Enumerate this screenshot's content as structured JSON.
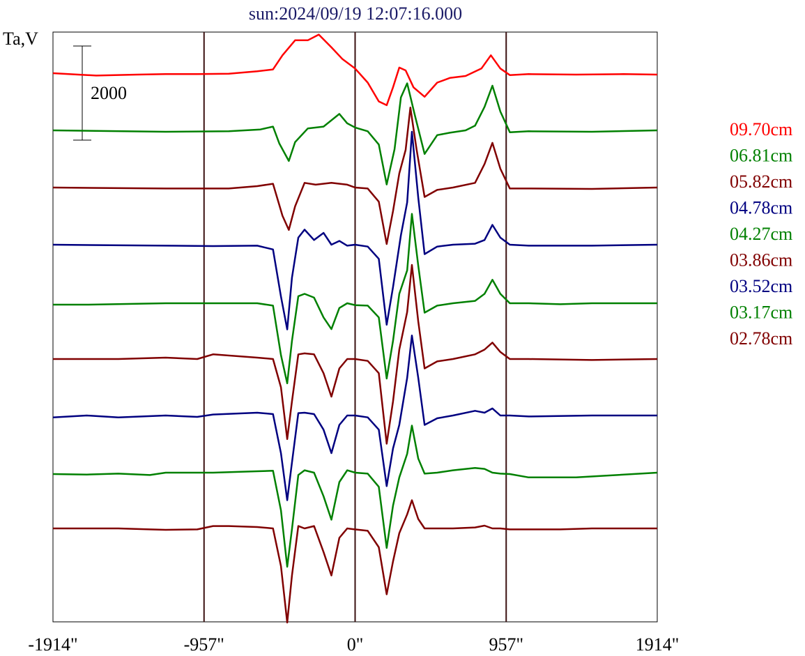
{
  "chart_data": {
    "type": "line",
    "title": "sun:2024/09/19 12:07:16.000",
    "ylabel": "Ta,V",
    "scale_bar_label": "2000",
    "x_ticks": [
      "-1914\"",
      "-957\"",
      "0\"",
      "957\"",
      "1914\""
    ],
    "x_tick_values": [
      -1914,
      -957,
      0,
      957,
      1914
    ],
    "vertical_marker_lines": [
      -957,
      0,
      957
    ],
    "xlim": [
      -1914,
      1914
    ],
    "grid": false,
    "legend_position": "right",
    "stacked_offsets": true,
    "series": [
      {
        "name": "09.70cm",
        "color": "#ff0000",
        "x": [
          -1914,
          -1640,
          -1380,
          -1200,
          -1000,
          -800,
          -620,
          -520,
          -460,
          -380,
          -300,
          -230,
          -150,
          -80,
          0,
          80,
          150,
          200,
          240,
          280,
          320,
          370,
          440,
          520,
          600,
          700,
          800,
          860,
          920,
          980,
          1100,
          1400,
          1700,
          1914
        ],
        "y": [
          0,
          -50,
          -30,
          -20,
          -20,
          -10,
          40,
          80,
          380,
          700,
          700,
          820,
          550,
          300,
          100,
          -200,
          -600,
          -680,
          -300,
          120,
          60,
          -300,
          -500,
          -200,
          -100,
          -60,
          100,
          380,
          100,
          -40,
          -20,
          -30,
          -20,
          -30
        ]
      },
      {
        "name": "06.81cm",
        "color": "#008000",
        "x": [
          -1914,
          -1200,
          -800,
          -600,
          -520,
          -480,
          -420,
          -380,
          -300,
          -200,
          -100,
          -50,
          0,
          80,
          150,
          200,
          250,
          290,
          330,
          380,
          440,
          520,
          600,
          700,
          760,
          820,
          870,
          920,
          980,
          1100,
          1500,
          1914
        ],
        "y": [
          0,
          -30,
          -20,
          20,
          80,
          -280,
          -650,
          -250,
          40,
          80,
          350,
          150,
          60,
          -20,
          -300,
          -1150,
          -400,
          700,
          1000,
          300,
          -500,
          -100,
          -50,
          0,
          100,
          500,
          950,
          400,
          -40,
          -20,
          -30,
          0
        ]
      },
      {
        "name": "05.82cm",
        "color": "#800000",
        "x": [
          -1914,
          -1200,
          -800,
          -620,
          -520,
          -460,
          -420,
          -380,
          -320,
          -250,
          -150,
          -50,
          0,
          80,
          150,
          200,
          240,
          280,
          320,
          350,
          390,
          440,
          520,
          620,
          760,
          820,
          870,
          920,
          980,
          1100,
          1500,
          1914
        ],
        "y": [
          0,
          -20,
          -20,
          30,
          80,
          -600,
          -900,
          -400,
          100,
          60,
          100,
          60,
          0,
          -20,
          -300,
          -1200,
          -500,
          300,
          800,
          1700,
          800,
          -200,
          -50,
          0,
          100,
          500,
          950,
          400,
          -20,
          -20,
          -30,
          0
        ]
      },
      {
        "name": "04.78cm",
        "color": "#000080",
        "x": [
          -1914,
          -1200,
          -900,
          -620,
          -520,
          -470,
          -430,
          -400,
          -360,
          -320,
          -260,
          -200,
          -150,
          -100,
          -50,
          0,
          80,
          150,
          200,
          240,
          290,
          330,
          360,
          400,
          440,
          520,
          620,
          760,
          820,
          870,
          920,
          980,
          1100,
          1500,
          1914
        ],
        "y": [
          0,
          -20,
          -30,
          -20,
          -100,
          -1100,
          -1800,
          -700,
          150,
          320,
          100,
          250,
          0,
          80,
          -20,
          0,
          -40,
          -300,
          -1700,
          -900,
          200,
          900,
          2400,
          1000,
          -200,
          -40,
          0,
          20,
          100,
          420,
          150,
          0,
          -20,
          -20,
          0
        ]
      },
      {
        "name": "04.27cm",
        "color": "#008000",
        "x": [
          -1914,
          -1700,
          -1200,
          -900,
          -620,
          -520,
          -470,
          -430,
          -400,
          -360,
          -320,
          -260,
          -200,
          -150,
          -100,
          -50,
          0,
          80,
          150,
          200,
          240,
          280,
          330,
          360,
          400,
          440,
          520,
          620,
          760,
          820,
          870,
          920,
          980,
          1100,
          1300,
          1500,
          1914
        ],
        "y": [
          -30,
          -30,
          0,
          0,
          0,
          -50,
          -1100,
          -1700,
          -800,
          150,
          200,
          120,
          -300,
          -550,
          -100,
          0,
          -40,
          -50,
          -300,
          -1600,
          -800,
          200,
          700,
          1900,
          800,
          -200,
          -50,
          0,
          50,
          200,
          500,
          200,
          0,
          0,
          -20,
          0,
          0
        ]
      },
      {
        "name": "03.86cm",
        "color": "#800000",
        "x": [
          -1914,
          -1500,
          -1200,
          -1000,
          -900,
          -620,
          -520,
          -470,
          -430,
          -400,
          -360,
          -320,
          -260,
          -200,
          -150,
          -100,
          -50,
          0,
          80,
          150,
          200,
          240,
          280,
          330,
          360,
          400,
          440,
          520,
          620,
          760,
          820,
          870,
          920,
          980,
          1100,
          1500,
          1914
        ],
        "y": [
          0,
          0,
          30,
          0,
          100,
          30,
          0,
          -600,
          -1700,
          -900,
          100,
          120,
          100,
          -300,
          -800,
          -200,
          0,
          0,
          -40,
          -300,
          -1800,
          -900,
          200,
          1000,
          2000,
          800,
          -200,
          -50,
          0,
          100,
          200,
          350,
          150,
          0,
          0,
          -20,
          0
        ]
      },
      {
        "name": "03.52cm",
        "color": "#000080",
        "x": [
          -1914,
          -1700,
          -1500,
          -1200,
          -1000,
          -900,
          -620,
          -520,
          -470,
          -430,
          -400,
          -360,
          -320,
          -260,
          -200,
          -150,
          -100,
          -50,
          0,
          80,
          150,
          200,
          240,
          280,
          330,
          360,
          400,
          440,
          520,
          620,
          760,
          820,
          870,
          920,
          980,
          1100,
          1500,
          1914
        ],
        "y": [
          -40,
          0,
          -40,
          0,
          -30,
          20,
          60,
          30,
          -800,
          -1800,
          -1000,
          50,
          60,
          30,
          -300,
          -800,
          -200,
          0,
          0,
          -40,
          -300,
          -1500,
          -700,
          -200,
          800,
          1700,
          800,
          -200,
          -60,
          0,
          100,
          60,
          150,
          0,
          0,
          -20,
          0,
          0
        ]
      },
      {
        "name": "03.17cm",
        "color": "#008000",
        "x": [
          -1914,
          -1700,
          -1500,
          -1300,
          -1200,
          -900,
          -620,
          -520,
          -470,
          -430,
          -400,
          -360,
          -320,
          -260,
          -200,
          -150,
          -100,
          -50,
          0,
          80,
          150,
          200,
          240,
          280,
          330,
          360,
          400,
          440,
          520,
          620,
          760,
          820,
          870,
          920,
          980,
          1100,
          1400,
          1914
        ],
        "y": [
          -30,
          -40,
          -20,
          -50,
          0,
          0,
          30,
          40,
          -800,
          -2000,
          -1200,
          -50,
          50,
          0,
          -500,
          -1000,
          -200,
          50,
          0,
          -20,
          -300,
          -1600,
          -700,
          -100,
          400,
          1000,
          300,
          -20,
          0,
          50,
          100,
          80,
          0,
          -20,
          -30,
          -100,
          -100,
          0
        ]
      },
      {
        "name": "02.78cm",
        "color": "#800000",
        "x": [
          -1914,
          -1500,
          -1300,
          -1200,
          -1000,
          -900,
          -800,
          -620,
          -520,
          -470,
          -430,
          -400,
          -360,
          -320,
          -260,
          -200,
          -150,
          -100,
          -50,
          0,
          80,
          150,
          200,
          240,
          280,
          330,
          360,
          400,
          440,
          520,
          620,
          760,
          820,
          870,
          920,
          980,
          1100,
          1300,
          1500,
          1914
        ],
        "y": [
          0,
          0,
          -20,
          -30,
          -20,
          50,
          50,
          30,
          0,
          -800,
          -2000,
          -1000,
          50,
          0,
          50,
          -500,
          -1000,
          -200,
          0,
          -20,
          -50,
          -400,
          -1400,
          -700,
          -100,
          300,
          600,
          200,
          0,
          0,
          0,
          20,
          60,
          0,
          0,
          -20,
          -20,
          -20,
          0,
          0
        ]
      }
    ]
  }
}
